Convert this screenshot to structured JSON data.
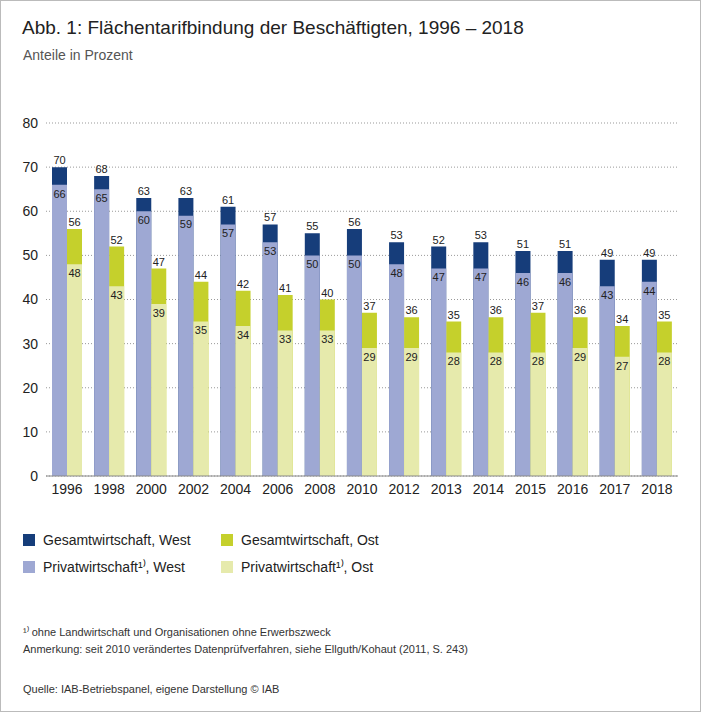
{
  "chart_data": {
    "type": "bar",
    "title": "Abb. 1: Flächentarifbindung der Beschäftigten, 1996 – 2018",
    "subtitle": "Anteile in Prozent",
    "categories": [
      "1996",
      "1998",
      "2000",
      "2002",
      "2004",
      "2006",
      "2008",
      "2010",
      "2012",
      "2013",
      "2014",
      "2015",
      "2016",
      "2017",
      "2018"
    ],
    "series": [
      {
        "name": "Gesamtwirtschaft, West",
        "color": "#163d7a",
        "values": [
          70,
          68,
          63,
          63,
          61,
          57,
          55,
          56,
          53,
          52,
          53,
          51,
          51,
          49,
          49
        ]
      },
      {
        "name": "Gesamtwirtschaft, Ost",
        "color": "#c5d02c",
        "values": [
          56,
          52,
          47,
          44,
          42,
          41,
          40,
          37,
          36,
          35,
          36,
          37,
          36,
          34,
          35
        ]
      },
      {
        "name": "Privatwirtschaft¹⁾, West",
        "color": "#9ea8d3",
        "values": [
          66,
          65,
          60,
          59,
          57,
          53,
          50,
          50,
          48,
          47,
          47,
          46,
          46,
          43,
          44
        ]
      },
      {
        "name": "Privatwirtschaft¹⁾, Ost",
        "color": "#e6eaac",
        "values": [
          48,
          43,
          39,
          35,
          34,
          33,
          33,
          29,
          29,
          28,
          28,
          28,
          29,
          27,
          28
        ]
      }
    ],
    "ylim": [
      0,
      80
    ],
    "yticks": [
      0,
      10,
      20,
      30,
      40,
      50,
      60,
      70,
      80
    ],
    "grid": true,
    "data_labels": true,
    "legend": "bottom",
    "footnote": "¹⁾ ohne Landwirtschaft und Organisationen ohne Erwerbszweck",
    "note": "Anmerkung: seit 2010 verändertes Datenprüfverfahren, siehe Ellguth/Kohaut (2011, S. 243)",
    "source": "Quelle: IAB-Betriebspanel, eigene Darstellung © IAB"
  }
}
